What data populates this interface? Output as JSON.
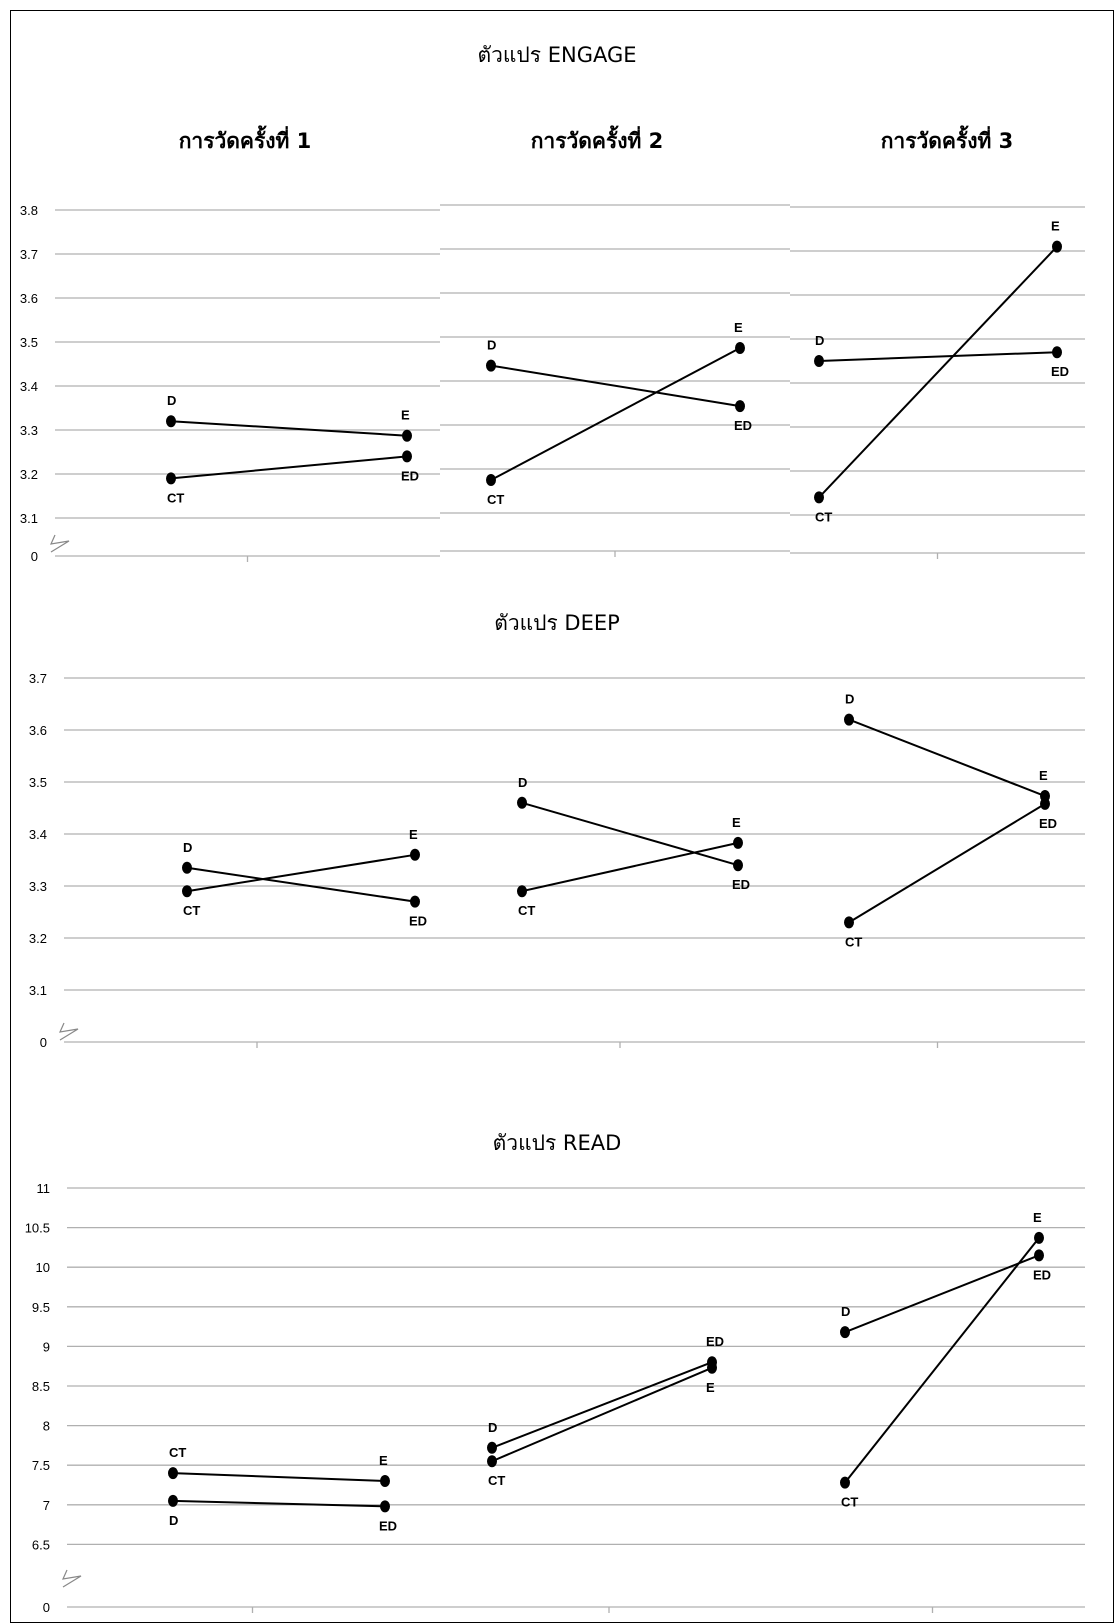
{
  "sections": [
    {
      "title": "ตัวแปร ENGAGE"
    },
    {
      "title": "ตัวแปร DEEP"
    },
    {
      "title": "ตัวแปร READ"
    }
  ],
  "column_titles": [
    "การวัดครั้งที่ 1",
    "การวัดครั้งที่ 2",
    "การวัดครั้งที่ 3"
  ],
  "chart_data": [
    {
      "type": "line",
      "variable": "ENGAGE",
      "y_ticks": [
        "3.8",
        "3.7",
        "3.6",
        "3.5",
        "3.4",
        "3.3",
        "3.2",
        "3.1",
        "0"
      ],
      "axis_break": true,
      "panels": [
        {
          "title": "การวัดครั้งที่ 1",
          "series": [
            {
              "start_label": "D",
              "end_label": "E",
              "values": [
                3.32,
                3.287
              ]
            },
            {
              "start_label": "CT",
              "end_label": "ED",
              "values": [
                3.19,
                3.24
              ]
            }
          ]
        },
        {
          "title": "การวัดครั้งที่ 2",
          "series": [
            {
              "start_label": "D",
              "end_label": "ED",
              "values": [
                3.435,
                3.343
              ]
            },
            {
              "start_label": "CT",
              "end_label": "E",
              "values": [
                3.175,
                3.475
              ]
            }
          ]
        },
        {
          "title": "การวัดครั้งที่ 3",
          "series": [
            {
              "start_label": "D",
              "end_label": "ED",
              "values": [
                3.45,
                3.47
              ]
            },
            {
              "start_label": "CT",
              "end_label": "E",
              "values": [
                3.14,
                3.71
              ]
            }
          ]
        }
      ]
    },
    {
      "type": "line",
      "variable": "DEEP",
      "y_ticks": [
        "3.7",
        "3.6",
        "3.5",
        "3.4",
        "3.3",
        "3.2",
        "3.1",
        "0"
      ],
      "axis_break": true,
      "panels": [
        {
          "title": "การวัดครั้งที่ 1",
          "series": [
            {
              "start_label": "D",
              "end_label": "ED",
              "values": [
                3.335,
                3.27
              ]
            },
            {
              "start_label": "CT",
              "end_label": "E",
              "values": [
                3.29,
                3.36
              ]
            }
          ]
        },
        {
          "title": "การวัดครั้งที่ 2",
          "series": [
            {
              "start_label": "D",
              "end_label": "ED",
              "values": [
                3.46,
                3.34
              ]
            },
            {
              "start_label": "CT",
              "end_label": "E",
              "values": [
                3.29,
                3.383
              ]
            }
          ]
        },
        {
          "title": "การวัดครั้งที่ 3",
          "series": [
            {
              "start_label": "D",
              "end_label": "E",
              "values": [
                3.62,
                3.473
              ]
            },
            {
              "start_label": "CT",
              "end_label": "ED",
              "values": [
                3.23,
                3.458
              ]
            }
          ]
        }
      ]
    },
    {
      "type": "line",
      "variable": "READ",
      "y_ticks": [
        "11",
        "10.5",
        "10",
        "9.5",
        "9",
        "8.5",
        "8",
        "7.5",
        "7",
        "6.5",
        "0"
      ],
      "axis_break": true,
      "panels": [
        {
          "title": "การวัดครั้งที่ 1",
          "series": [
            {
              "start_label": "CT",
              "end_label": "E",
              "values": [
                7.4,
                7.3
              ]
            },
            {
              "start_label": "D",
              "end_label": "ED",
              "values": [
                7.05,
                6.98
              ]
            }
          ]
        },
        {
          "title": "การวัดครั้งที่ 2",
          "series": [
            {
              "start_label": "D",
              "end_label": "ED",
              "values": [
                7.72,
                8.8
              ]
            },
            {
              "start_label": "CT",
              "end_label": "E",
              "values": [
                7.55,
                8.73
              ]
            }
          ]
        },
        {
          "title": "การวัดครั้งที่ 3",
          "series": [
            {
              "start_label": "D",
              "end_label": "ED",
              "values": [
                9.18,
                10.15
              ]
            },
            {
              "start_label": "CT",
              "end_label": "E",
              "values": [
                7.28,
                10.37
              ]
            }
          ]
        }
      ]
    }
  ]
}
